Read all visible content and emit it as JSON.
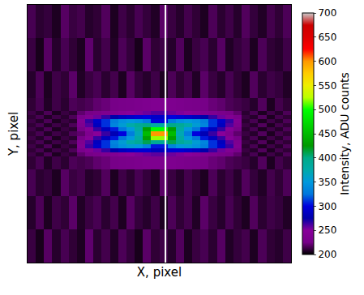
{
  "chart_data": {
    "type": "heatmap",
    "xlabel": "X, pixel",
    "ylabel": "Y, pixel",
    "tick_labels": false,
    "xlim": [
      0,
      512
    ],
    "ylim": [
      0,
      496
    ],
    "x": [
      8,
      24,
      40,
      56,
      72,
      88,
      104,
      120,
      136,
      152,
      168,
      184,
      200,
      216,
      232,
      248,
      264,
      280,
      296,
      312,
      328,
      344,
      360,
      376,
      392,
      408,
      424,
      440,
      456,
      472,
      488,
      504
    ],
    "y": [
      32,
      96,
      160,
      200,
      208,
      216,
      224,
      232,
      240,
      248,
      256,
      264,
      272,
      280,
      288,
      296,
      336,
      400,
      464
    ],
    "z": [
      [
        212,
        205,
        218,
        208,
        215,
        210,
        206,
        220,
        209,
        214,
        207,
        216,
        211,
        205,
        219,
        210,
        213,
        208,
        217,
        206,
        212,
        215,
        209,
        218,
        207,
        211,
        214,
        206,
        216,
        210,
        208,
        213
      ],
      [
        208,
        216,
        206,
        213,
        210,
        219,
        207,
        212,
        215,
        209,
        214,
        206,
        218,
        211,
        208,
        213,
        206,
        216,
        210,
        214,
        207,
        219,
        212,
        208,
        215,
        210,
        206,
        217,
        209,
        213,
        211,
        207
      ],
      [
        215,
        209,
        211,
        206,
        218,
        212,
        214,
        208,
        210,
        217,
        206,
        213,
        209,
        215,
        211,
        207,
        219,
        212,
        208,
        214,
        210,
        206,
        216,
        209,
        213,
        208,
        217,
        211,
        207,
        214,
        210,
        216
      ],
      [
        210,
        215,
        207,
        213,
        209,
        216,
        214,
        216,
        220,
        222,
        225,
        228,
        230,
        232,
        235,
        236,
        236,
        235,
        232,
        230,
        228,
        225,
        222,
        220,
        216,
        214,
        212,
        208,
        217,
        206,
        214,
        210
      ],
      [
        213,
        208,
        216,
        206,
        212,
        209,
        220,
        225,
        230,
        235,
        240,
        245,
        250,
        252,
        255,
        258,
        258,
        255,
        252,
        250,
        245,
        240,
        235,
        230,
        225,
        220,
        209,
        215,
        206,
        213,
        208,
        216
      ],
      [
        210,
        215,
        207,
        213,
        209,
        216,
        230,
        240,
        255,
        265,
        275,
        285,
        290,
        295,
        295,
        285,
        285,
        295,
        295,
        290,
        285,
        275,
        265,
        255,
        240,
        230,
        212,
        208,
        217,
        206,
        214,
        210
      ],
      [
        213,
        208,
        216,
        206,
        212,
        209,
        240,
        265,
        290,
        310,
        330,
        345,
        355,
        350,
        335,
        305,
        305,
        335,
        350,
        355,
        345,
        330,
        310,
        290,
        265,
        240,
        209,
        215,
        206,
        213,
        208,
        216
      ],
      [
        210,
        215,
        207,
        213,
        209,
        216,
        235,
        260,
        285,
        310,
        335,
        355,
        375,
        390,
        410,
        390,
        390,
        410,
        390,
        375,
        355,
        335,
        310,
        285,
        260,
        235,
        212,
        208,
        217,
        206,
        214,
        210
      ],
      [
        213,
        208,
        216,
        206,
        212,
        209,
        225,
        245,
        265,
        285,
        305,
        325,
        350,
        380,
        430,
        520,
        520,
        430,
        380,
        350,
        325,
        305,
        285,
        265,
        245,
        225,
        209,
        215,
        206,
        213,
        208,
        216
      ],
      [
        210,
        215,
        207,
        213,
        209,
        216,
        220,
        235,
        250,
        265,
        280,
        300,
        330,
        370,
        450,
        600,
        600,
        450,
        370,
        330,
        300,
        280,
        265,
        250,
        235,
        220,
        212,
        208,
        217,
        206,
        214,
        210
      ],
      [
        213,
        208,
        216,
        206,
        212,
        209,
        225,
        245,
        265,
        285,
        305,
        325,
        350,
        380,
        430,
        500,
        500,
        430,
        380,
        350,
        325,
        305,
        285,
        265,
        245,
        225,
        209,
        215,
        206,
        213,
        208,
        216
      ],
      [
        210,
        215,
        207,
        213,
        209,
        216,
        235,
        260,
        285,
        310,
        335,
        355,
        375,
        390,
        400,
        380,
        380,
        400,
        390,
        375,
        355,
        335,
        310,
        285,
        260,
        235,
        212,
        208,
        217,
        206,
        214,
        210
      ],
      [
        213,
        208,
        216,
        206,
        212,
        209,
        240,
        265,
        290,
        310,
        330,
        345,
        350,
        345,
        330,
        300,
        300,
        330,
        345,
        350,
        345,
        330,
        310,
        290,
        265,
        240,
        209,
        215,
        206,
        213,
        208,
        216
      ],
      [
        210,
        215,
        207,
        213,
        209,
        216,
        230,
        240,
        255,
        265,
        275,
        285,
        290,
        295,
        300,
        290,
        290,
        300,
        295,
        290,
        285,
        275,
        265,
        255,
        240,
        230,
        212,
        208,
        217,
        206,
        214,
        210
      ],
      [
        213,
        208,
        216,
        206,
        212,
        209,
        220,
        225,
        230,
        235,
        240,
        245,
        250,
        252,
        255,
        260,
        260,
        255,
        252,
        250,
        245,
        240,
        235,
        230,
        225,
        220,
        209,
        215,
        206,
        213,
        208,
        216
      ],
      [
        210,
        215,
        207,
        213,
        209,
        216,
        214,
        216,
        220,
        222,
        225,
        228,
        230,
        232,
        235,
        238,
        238,
        235,
        232,
        230,
        228,
        225,
        222,
        220,
        216,
        214,
        212,
        208,
        217,
        206,
        214,
        210
      ],
      [
        208,
        216,
        206,
        213,
        210,
        219,
        207,
        212,
        215,
        209,
        214,
        206,
        218,
        211,
        208,
        213,
        206,
        216,
        210,
        214,
        207,
        219,
        212,
        208,
        215,
        210,
        206,
        217,
        209,
        213,
        211,
        207
      ],
      [
        212,
        205,
        218,
        208,
        215,
        210,
        206,
        220,
        209,
        214,
        207,
        216,
        211,
        205,
        219,
        210,
        213,
        208,
        217,
        206,
        212,
        215,
        209,
        218,
        207,
        211,
        214,
        206,
        216,
        210,
        208,
        213
      ],
      [
        215,
        209,
        211,
        206,
        218,
        212,
        214,
        208,
        210,
        217,
        206,
        213,
        209,
        215,
        211,
        207,
        219,
        212,
        208,
        214,
        210,
        206,
        216,
        209,
        213,
        208,
        217,
        211,
        207,
        214,
        210,
        216
      ]
    ],
    "colorbar": {
      "title": "Intensity, ADU counts",
      "range": [
        200,
        700
      ],
      "ticks": [
        200,
        250,
        300,
        350,
        400,
        450,
        500,
        550,
        600,
        650,
        700
      ]
    },
    "vertical_line": {
      "x": 268,
      "color": "#ffffff"
    }
  }
}
